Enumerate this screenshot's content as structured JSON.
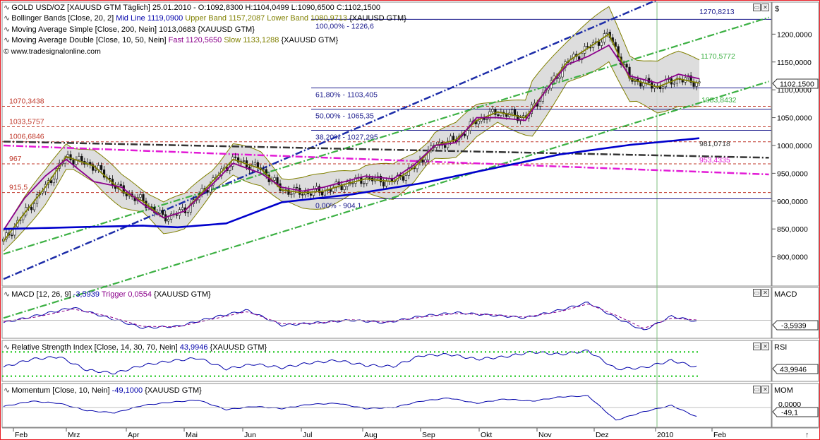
{
  "price_panel": {
    "legends": {
      "title": "GOLD USD/OZ [XAUUSD GTM  Täglich] 25.01.2010 - O:1092,8300 H:1104,0499 L:1090,6500 C:1102,1500",
      "bollinger_name": "Bollinger Bands [Close, 20, 2]",
      "bollinger_mid": "Mid Line 1119,0900",
      "bollinger_up": "Upper Band 1157,2087",
      "bollinger_low": "Lower Band 1080,9713",
      "bollinger_src": "{XAUUSD GTM}",
      "sma_name": "Moving Average Simple [Close, 200, Nein]",
      "sma_val": "1013,0683 {XAUUSD GTM}",
      "mad_name": "Moving Average Double [Close, 10, 50, Nein]",
      "mad_fast": "Fast 1120,5650",
      "mad_slow": "Slow 1133,1288",
      "mad_src": "{XAUUSD GTM}",
      "website": "© www.tradesignalonline.com"
    },
    "axis_header": "$",
    "price_tag": "1102,1500"
  },
  "macd_panel": {
    "legend_name": "MACD [12, 26, 9]",
    "legend_val": "-3,5939",
    "legend_trig": "Trigger 0,0554",
    "legend_src": "{XAUUSD GTM}",
    "axis_header": "MACD",
    "value_tag": "-3,5939"
  },
  "rsi_panel": {
    "legend_name": "Relative Strength Index [Close, 14, 30, 70, Nein]",
    "legend_val": "43,9946",
    "legend_src": "{XAUUSD GTM}",
    "axis_header": "RSI",
    "value_tag": "43,9946"
  },
  "mom_panel": {
    "legend_name": "Momentum [Close, 10, Nein]",
    "legend_val": "-49,1000",
    "legend_src": "{XAUUSD GTM}",
    "axis_header": "MOM",
    "zero_label": "0,0000",
    "value_tag": "-49,1"
  },
  "chart_data": [
    {
      "type": "line",
      "title": "GOLD USD/OZ [XAUUSD GTM  Täglich]",
      "x_ticks": [
        "Feb",
        "Mrz",
        "Apr",
        "Mai",
        "Jun",
        "Jul",
        "Aug",
        "Sep",
        "Okt",
        "Nov",
        "Dez",
        "2010",
        "Feb"
      ],
      "y_ticks": [
        "1200,0000",
        "1150,0000",
        "1100,0000",
        "1050,0000",
        "1000,0000",
        "950,0000",
        "900,0000",
        "850,0000",
        "800,0000"
      ],
      "ylim": [
        750,
        1255
      ],
      "series": [
        {
          "name": "Bollinger Bands [Close, 20, 2]",
          "color": "#808000",
          "x": [
            0,
            3,
            6,
            9,
            13,
            17,
            20,
            23,
            26,
            30,
            33,
            37,
            40,
            43,
            46,
            49,
            52,
            56,
            59,
            62,
            65,
            68,
            71,
            75,
            78,
            81,
            84,
            87,
            90,
            94,
            97,
            100
          ],
          "y": [
            828,
            878,
            925,
            980,
            963,
            918,
            900,
            870,
            882,
            935,
            975,
            958,
            920,
            915,
            918,
            930,
            940,
            935,
            960,
            1000,
            1010,
            1045,
            1060,
            1050,
            1100,
            1150,
            1175,
            1200,
            1120,
            1105,
            1120,
            1112
          ]
        },
        {
          "name": "Moving Average Double [Close, 10, 50, Nein]",
          "color": "#8b008b",
          "x": [
            0,
            3,
            6,
            9,
            13,
            17,
            20,
            23,
            26,
            30,
            33,
            37,
            40,
            43,
            46,
            49,
            52,
            56,
            59,
            62,
            65,
            68,
            71,
            75,
            78,
            81,
            84,
            87,
            90,
            94,
            97,
            100
          ],
          "y": [
            848,
            905,
            945,
            975,
            935,
            925,
            895,
            870,
            882,
            930,
            968,
            950,
            925,
            918,
            925,
            935,
            945,
            940,
            965,
            1000,
            1005,
            1050,
            1050,
            1045,
            1100,
            1145,
            1160,
            1180,
            1125,
            1112,
            1128,
            1120
          ]
        },
        {
          "name": "Moving Average Simple [Close, 200, Nein]",
          "color": "#0000cc",
          "x": [
            0,
            10,
            20,
            25,
            32,
            40,
            50,
            60,
            70,
            80,
            90,
            100
          ],
          "y": [
            850,
            853,
            856,
            853,
            860,
            898,
            912,
            932,
            958,
            984,
            1001,
            1013
          ]
        }
      ],
      "fib_levels": [
        {
          "label": "100,00% - 1226,6",
          "value": 1226.6
        },
        {
          "label": "61,80% - 1103,405",
          "value": 1103.405
        },
        {
          "label": "50,00% - 1065,35",
          "value": 1065.35
        },
        {
          "label": "38,20% - 1027,295",
          "value": 1027.295
        },
        {
          "label": "0,00% - 904,1",
          "value": 904.1
        }
      ],
      "horizontal_levels": [
        "1070,3438",
        "1033,5757",
        "1006,6846",
        "967",
        "915,5"
      ],
      "trendline_labels": [
        "1270,8213",
        "1170,5772",
        "1083,8432",
        "981,0718",
        "953,4335"
      ]
    },
    {
      "type": "line",
      "title": "MACD [12, 26, 9]",
      "series": [
        {
          "name": "MACD",
          "color": "#0000aa",
          "x": [
            0,
            5,
            10,
            15,
            20,
            25,
            30,
            35,
            40,
            45,
            50,
            55,
            60,
            65,
            70,
            75,
            80,
            84,
            88,
            92,
            96,
            100
          ],
          "y": [
            -5,
            10,
            25,
            5,
            -15,
            -12,
            5,
            20,
            -10,
            -5,
            0,
            -5,
            8,
            15,
            10,
            5,
            20,
            35,
            5,
            -20,
            8,
            -3.6
          ]
        },
        {
          "name": "Trigger",
          "color": "#8b008b",
          "x": [
            0,
            5,
            10,
            15,
            20,
            25,
            30,
            35,
            40,
            45,
            50,
            55,
            60,
            65,
            70,
            75,
            80,
            84,
            88,
            92,
            96,
            100
          ],
          "y": [
            -3,
            7,
            22,
            8,
            -12,
            -13,
            2,
            17,
            -7,
            -6,
            1,
            -4,
            6,
            13,
            11,
            6,
            17,
            32,
            10,
            -16,
            4,
            0.06
          ]
        }
      ]
    },
    {
      "type": "line",
      "title": "Relative Strength Index [Close, 14, 30, 70, Nein]",
      "thresholds": [
        30,
        70
      ],
      "series": [
        {
          "name": "RSI",
          "color": "#0000aa",
          "x": [
            0,
            4,
            8,
            12,
            16,
            20,
            24,
            28,
            32,
            36,
            40,
            44,
            48,
            52,
            56,
            60,
            64,
            68,
            72,
            76,
            80,
            84,
            88,
            92,
            96,
            100
          ],
          "y": [
            45,
            58,
            62,
            40,
            35,
            48,
            55,
            60,
            42,
            50,
            44,
            52,
            56,
            48,
            46,
            64,
            66,
            58,
            62,
            70,
            66,
            72,
            42,
            44,
            56,
            44
          ]
        }
      ]
    },
    {
      "type": "line",
      "title": "Momentum [Close, 10, Nein]",
      "series": [
        {
          "name": "Momentum",
          "color": "#0000aa",
          "x": [
            0,
            4,
            8,
            12,
            16,
            20,
            24,
            28,
            32,
            36,
            40,
            44,
            48,
            52,
            56,
            60,
            64,
            68,
            72,
            76,
            80,
            84,
            88,
            92,
            96,
            100
          ],
          "y": [
            5,
            30,
            20,
            -15,
            -25,
            10,
            25,
            35,
            -10,
            5,
            -5,
            15,
            20,
            -5,
            0,
            30,
            45,
            20,
            40,
            30,
            50,
            55,
            -60,
            -20,
            10,
            -49.1
          ]
        }
      ]
    }
  ]
}
